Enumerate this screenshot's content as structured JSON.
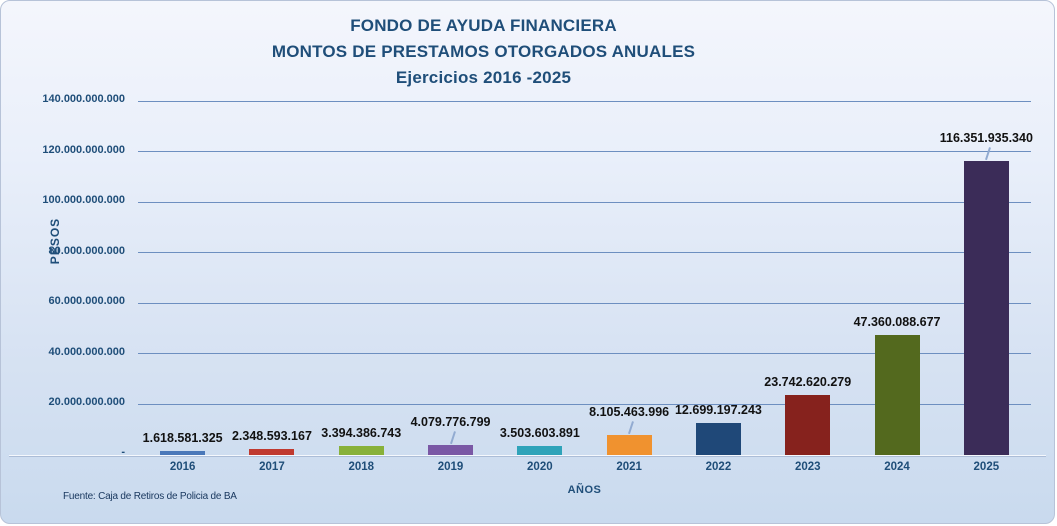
{
  "title": {
    "line1": "FONDO DE AYUDA FINANCIERA",
    "line2": "MONTOS DE PRESTAMOS OTORGADOS ANUALES",
    "line3": "Ejercicios 2016 -2025"
  },
  "axes": {
    "y_axis_title": "PESOS",
    "x_axis_title": "AÑOS",
    "zero_tick_label": "-",
    "y_ticks": [
      {
        "value": 140000000000,
        "label": "140.000.000.000"
      },
      {
        "value": 120000000000,
        "label": "120.000.000.000"
      },
      {
        "value": 100000000000,
        "label": "100.000.000.000"
      },
      {
        "value": 80000000000,
        "label": "80.000.000.000"
      },
      {
        "value": 60000000000,
        "label": "60.000.000.000"
      },
      {
        "value": 40000000000,
        "label": "40.000.000.000"
      },
      {
        "value": 20000000000,
        "label": "20.000.000.000"
      }
    ]
  },
  "source_note": "Fuente: Caja de Retiros de Policia de BA",
  "chart_data": {
    "type": "bar",
    "title": "FONDO DE AYUDA FINANCIERA - MONTOS DE PRESTAMOS OTORGADOS ANUALES - Ejercicios 2016 -2025",
    "xlabel": "AÑOS",
    "ylabel": "PESOS",
    "ylim": [
      0,
      140000000000
    ],
    "grid": true,
    "legend": false,
    "categories": [
      "2016",
      "2017",
      "2018",
      "2019",
      "2020",
      "2021",
      "2022",
      "2023",
      "2024",
      "2025"
    ],
    "values": [
      1618581325,
      2348593167,
      3394386743,
      4079776799,
      3503603891,
      8105463996,
      12699197243,
      23742620279,
      47360088677,
      116351935340
    ],
    "value_labels": [
      "1.618.581.325",
      "2.348.593.167",
      "3.394.386.743",
      "4.079.776.799",
      "3.503.603.891",
      "8.105.463.996",
      "12.699.197.243",
      "23.742.620.279",
      "47.360.088.677",
      "116.351.935.340"
    ],
    "bar_colors": [
      "#4a78b9",
      "#c03a30",
      "#88b13a",
      "#7a58a5",
      "#2fa3b9",
      "#f0922f",
      "#1f4878",
      "#86221d",
      "#53691e",
      "#3b2c58"
    ],
    "leader_lines": [
      false,
      false,
      false,
      true,
      false,
      true,
      false,
      false,
      false,
      true
    ]
  },
  "colors": {
    "title_text": "#1f4e79",
    "axis_text": "#1f4e79",
    "data_label_text": "#111111",
    "gridline": "#6d8fc0",
    "background_top": "#f4f6fc",
    "background_bottom": "#c9daee"
  }
}
